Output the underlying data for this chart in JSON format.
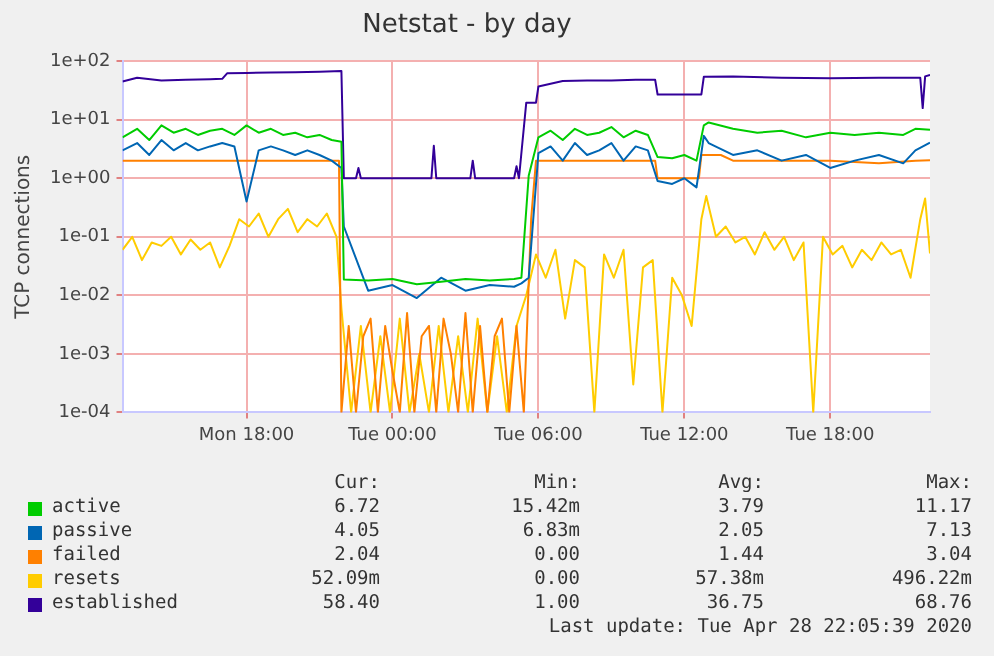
{
  "chart_data": {
    "type": "line",
    "title": "Netstat - by day",
    "ylabel": "TCP connections",
    "log": "y",
    "grid": true,
    "legend": "bottom left",
    "marker": "none",
    "line_style": "solid",
    "xlim": [
      "2020-04-27T12:54",
      "2020-04-28T22:06"
    ],
    "xticks": [
      {
        "value": "2020-04-27T18:00",
        "label": "Mon 18:00"
      },
      {
        "value": "2020-04-28T00:00",
        "label": "Tue 00:00"
      },
      {
        "value": "2020-04-28T06:00",
        "label": "Tue 06:00"
      },
      {
        "value": "2020-04-28T12:00",
        "label": "Tue 12:00"
      },
      {
        "value": "2020-04-28T18:00",
        "label": "Tue 18:00"
      }
    ],
    "ylim": [
      0.0001,
      100
    ],
    "yticks": [
      {
        "value": 0.0001,
        "label": "1e-04"
      },
      {
        "value": 0.001,
        "label": "1e-03"
      },
      {
        "value": 0.01,
        "label": "1e-02"
      },
      {
        "value": 0.1,
        "label": "1e-01"
      },
      {
        "value": 1,
        "label": "1e+00"
      },
      {
        "value": 10,
        "label": "1e+01"
      },
      {
        "value": 100,
        "label": "1e+02"
      }
    ],
    "series": [
      {
        "name": "active",
        "color": "#00cc00",
        "x": [
          "2020-04-27T12:54",
          "2020-04-27T13:30",
          "2020-04-27T14:00",
          "2020-04-27T14:30",
          "2020-04-27T15:00",
          "2020-04-27T15:30",
          "2020-04-27T16:00",
          "2020-04-27T16:30",
          "2020-04-27T17:00",
          "2020-04-27T17:30",
          "2020-04-27T18:00",
          "2020-04-27T18:30",
          "2020-04-27T19:00",
          "2020-04-27T19:30",
          "2020-04-27T20:00",
          "2020-04-27T20:30",
          "2020-04-27T21:00",
          "2020-04-27T21:30",
          "2020-04-27T21:54",
          "2020-04-27T22:00",
          "2020-04-27T23:00",
          "2020-04-28T00:00",
          "2020-04-28T01:00",
          "2020-04-28T02:00",
          "2020-04-28T03:00",
          "2020-04-28T04:00",
          "2020-04-28T05:00",
          "2020-04-28T05:18",
          "2020-04-28T05:36",
          "2020-04-28T06:00",
          "2020-04-28T06:30",
          "2020-04-28T07:00",
          "2020-04-28T07:30",
          "2020-04-28T08:00",
          "2020-04-28T08:30",
          "2020-04-28T09:00",
          "2020-04-28T09:30",
          "2020-04-28T10:00",
          "2020-04-28T10:30",
          "2020-04-28T10:54",
          "2020-04-28T11:30",
          "2020-04-28T12:00",
          "2020-04-28T12:30",
          "2020-04-28T12:48",
          "2020-04-28T13:00",
          "2020-04-28T14:00",
          "2020-04-28T15:00",
          "2020-04-28T16:00",
          "2020-04-28T17:00",
          "2020-04-28T18:00",
          "2020-04-28T19:00",
          "2020-04-28T20:00",
          "2020-04-28T21:00",
          "2020-04-28T21:30",
          "2020-04-28T22:06"
        ],
        "values": [
          5,
          7,
          4.5,
          8,
          6,
          7,
          5.5,
          6.5,
          7,
          5.5,
          8,
          6,
          7,
          5.5,
          6,
          5,
          5.5,
          4.5,
          4.2,
          0.0186,
          0.018,
          0.019,
          0.0155,
          0.017,
          0.019,
          0.018,
          0.019,
          0.02,
          1.1,
          5,
          6.5,
          4.5,
          7,
          5.5,
          6,
          7.5,
          5,
          6.5,
          5.5,
          2.3,
          2.2,
          2.5,
          2.0,
          8,
          9,
          7,
          6,
          6.5,
          5,
          6,
          5.5,
          6,
          5.5,
          7,
          6.72
        ]
      },
      {
        "name": "passive",
        "color": "#0066b3",
        "x": [
          "2020-04-27T12:54",
          "2020-04-27T13:30",
          "2020-04-27T14:00",
          "2020-04-27T14:30",
          "2020-04-27T15:00",
          "2020-04-27T15:30",
          "2020-04-27T16:00",
          "2020-04-27T16:30",
          "2020-04-27T17:00",
          "2020-04-27T17:30",
          "2020-04-27T18:00",
          "2020-04-27T18:30",
          "2020-04-27T19:00",
          "2020-04-27T19:30",
          "2020-04-27T20:00",
          "2020-04-27T20:30",
          "2020-04-27T21:00",
          "2020-04-27T21:30",
          "2020-04-27T21:54",
          "2020-04-27T22:00",
          "2020-04-27T23:00",
          "2020-04-28T00:00",
          "2020-04-28T01:00",
          "2020-04-28T02:00",
          "2020-04-28T03:00",
          "2020-04-28T04:00",
          "2020-04-28T05:00",
          "2020-04-28T05:18",
          "2020-04-28T05:36",
          "2020-04-28T06:00",
          "2020-04-28T06:30",
          "2020-04-28T07:00",
          "2020-04-28T07:30",
          "2020-04-28T08:00",
          "2020-04-28T08:30",
          "2020-04-28T09:00",
          "2020-04-28T09:30",
          "2020-04-28T10:00",
          "2020-04-28T10:30",
          "2020-04-28T10:54",
          "2020-04-28T11:30",
          "2020-04-28T12:00",
          "2020-04-28T12:30",
          "2020-04-28T12:48",
          "2020-04-28T13:00",
          "2020-04-28T14:00",
          "2020-04-28T15:00",
          "2020-04-28T16:00",
          "2020-04-28T17:00",
          "2020-04-28T18:00",
          "2020-04-28T19:00",
          "2020-04-28T20:00",
          "2020-04-28T21:00",
          "2020-04-28T21:30",
          "2020-04-28T22:06"
        ],
        "values": [
          3,
          4,
          2.5,
          4.5,
          3,
          4,
          3,
          3.5,
          4,
          3.5,
          0.4,
          3,
          3.5,
          3,
          2.5,
          3,
          2.5,
          2,
          1.5,
          0.15,
          0.012,
          0.015,
          0.009,
          0.02,
          0.012,
          0.015,
          0.014,
          0.016,
          0.02,
          2.7,
          3.5,
          2,
          4,
          2.5,
          3,
          4,
          2,
          3.5,
          3,
          0.9,
          0.8,
          1,
          0.7,
          5.3,
          4,
          2.5,
          3,
          2,
          2.5,
          1.5,
          2,
          2.5,
          1.8,
          3,
          4.05
        ]
      },
      {
        "name": "failed",
        "color": "#ff8000",
        "x": [
          "2020-04-27T12:54",
          "2020-04-27T16:00",
          "2020-04-27T21:48",
          "2020-04-27T21:54",
          "2020-04-27T22:12",
          "2020-04-27T22:30",
          "2020-04-27T22:48",
          "2020-04-27T23:06",
          "2020-04-27T23:24",
          "2020-04-27T23:42",
          "2020-04-28T00:00",
          "2020-04-28T00:18",
          "2020-04-28T00:36",
          "2020-04-28T00:54",
          "2020-04-28T01:12",
          "2020-04-28T01:30",
          "2020-04-28T01:48",
          "2020-04-28T02:06",
          "2020-04-28T02:24",
          "2020-04-28T02:42",
          "2020-04-28T03:00",
          "2020-04-28T03:18",
          "2020-04-28T03:36",
          "2020-04-28T03:54",
          "2020-04-28T04:12",
          "2020-04-28T04:30",
          "2020-04-28T04:48",
          "2020-04-28T05:06",
          "2020-04-28T05:24",
          "2020-04-28T05:42",
          "2020-04-28T05:54",
          "2020-04-28T07:00",
          "2020-04-28T09:00",
          "2020-04-28T10:48",
          "2020-04-28T10:54",
          "2020-04-28T12:36",
          "2020-04-28T12:42",
          "2020-04-28T13:30",
          "2020-04-28T14:00",
          "2020-04-28T16:00",
          "2020-04-28T18:00",
          "2020-04-28T20:00",
          "2020-04-28T21:30",
          "2020-04-28T22:06"
        ],
        "values": [
          2,
          2,
          2,
          0.0001,
          0.003,
          0.0001,
          0.002,
          0.004,
          0.0001,
          0.003,
          0.0005,
          0.0001,
          0.005,
          0.0001,
          0.002,
          0.003,
          0.0001,
          0.004,
          0.001,
          0.0001,
          0.005,
          0.0001,
          0.003,
          0.0001,
          0.002,
          0.004,
          0.0001,
          0.003,
          0.0001,
          0.2,
          2,
          2,
          2,
          2,
          1,
          1,
          2.5,
          2.5,
          2,
          2,
          2,
          1.8,
          2,
          2.04
        ]
      },
      {
        "name": "resets",
        "color": "#ffcc00",
        "x": [
          "2020-04-27T12:54",
          "2020-04-27T13:18",
          "2020-04-27T13:42",
          "2020-04-27T14:06",
          "2020-04-27T14:30",
          "2020-04-27T14:54",
          "2020-04-27T15:18",
          "2020-04-27T15:42",
          "2020-04-27T16:06",
          "2020-04-27T16:30",
          "2020-04-27T16:54",
          "2020-04-27T17:18",
          "2020-04-27T17:42",
          "2020-04-27T18:06",
          "2020-04-27T18:30",
          "2020-04-27T18:54",
          "2020-04-27T19:18",
          "2020-04-27T19:42",
          "2020-04-27T20:06",
          "2020-04-27T20:30",
          "2020-04-27T20:54",
          "2020-04-27T21:18",
          "2020-04-27T21:42",
          "2020-04-27T21:54",
          "2020-04-27T22:18",
          "2020-04-27T22:42",
          "2020-04-27T23:06",
          "2020-04-27T23:30",
          "2020-04-27T23:54",
          "2020-04-28T00:18",
          "2020-04-28T00:42",
          "2020-04-28T01:06",
          "2020-04-28T01:30",
          "2020-04-28T01:54",
          "2020-04-28T02:18",
          "2020-04-28T02:42",
          "2020-04-28T03:06",
          "2020-04-28T03:30",
          "2020-04-28T03:54",
          "2020-04-28T04:18",
          "2020-04-28T04:42",
          "2020-04-28T05:06",
          "2020-04-28T05:30",
          "2020-04-28T05:54",
          "2020-04-28T06:18",
          "2020-04-28T06:42",
          "2020-04-28T07:06",
          "2020-04-28T07:30",
          "2020-04-28T07:54",
          "2020-04-28T08:18",
          "2020-04-28T08:42",
          "2020-04-28T09:06",
          "2020-04-28T09:30",
          "2020-04-28T09:54",
          "2020-04-28T10:18",
          "2020-04-28T10:42",
          "2020-04-28T11:06",
          "2020-04-28T11:30",
          "2020-04-28T11:54",
          "2020-04-28T12:18",
          "2020-04-28T12:42",
          "2020-04-28T12:54",
          "2020-04-28T13:18",
          "2020-04-28T13:42",
          "2020-04-28T14:06",
          "2020-04-28T14:30",
          "2020-04-28T14:54",
          "2020-04-28T15:18",
          "2020-04-28T15:42",
          "2020-04-28T16:06",
          "2020-04-28T16:30",
          "2020-04-28T16:54",
          "2020-04-28T17:18",
          "2020-04-28T17:42",
          "2020-04-28T18:06",
          "2020-04-28T18:30",
          "2020-04-28T18:54",
          "2020-04-28T19:18",
          "2020-04-28T19:42",
          "2020-04-28T20:06",
          "2020-04-28T20:30",
          "2020-04-28T20:54",
          "2020-04-28T21:18",
          "2020-04-28T21:42",
          "2020-04-28T21:54",
          "2020-04-28T22:06"
        ],
        "values": [
          0.06,
          0.1,
          0.04,
          0.08,
          0.07,
          0.1,
          0.05,
          0.09,
          0.06,
          0.08,
          0.03,
          0.07,
          0.2,
          0.15,
          0.25,
          0.1,
          0.2,
          0.3,
          0.12,
          0.2,
          0.15,
          0.25,
          0.1,
          0.006,
          0.0001,
          0.003,
          0.0001,
          0.002,
          0.0001,
          0.004,
          0.0001,
          0.001,
          0.0001,
          0.003,
          0.0001,
          0.002,
          0.0001,
          0.004,
          0.0001,
          0.002,
          0.0001,
          0.003,
          0.01,
          0.05,
          0.02,
          0.06,
          0.004,
          0.04,
          0.03,
          0.0001,
          0.05,
          0.02,
          0.06,
          0.0003,
          0.03,
          0.04,
          0.0001,
          0.02,
          0.01,
          0.003,
          0.2,
          0.496,
          0.1,
          0.15,
          0.08,
          0.1,
          0.05,
          0.12,
          0.06,
          0.1,
          0.04,
          0.08,
          0.0001,
          0.1,
          0.05,
          0.07,
          0.03,
          0.06,
          0.04,
          0.08,
          0.05,
          0.06,
          0.02,
          0.2,
          0.45,
          0.052
        ]
      },
      {
        "name": "established",
        "color": "#330099",
        "x": [
          "2020-04-27T12:54",
          "2020-04-27T13:30",
          "2020-04-27T14:30",
          "2020-04-27T15:30",
          "2020-04-27T16:30",
          "2020-04-27T17:00",
          "2020-04-27T17:12",
          "2020-04-27T18:00",
          "2020-04-27T19:00",
          "2020-04-27T20:00",
          "2020-04-27T21:00",
          "2020-04-27T21:54",
          "2020-04-27T22:00",
          "2020-04-27T22:30",
          "2020-04-27T22:36",
          "2020-04-27T22:42",
          "2020-04-27T23:00",
          "2020-04-28T01:36",
          "2020-04-28T01:42",
          "2020-04-28T01:48",
          "2020-04-28T03:12",
          "2020-04-28T03:18",
          "2020-04-28T03:24",
          "2020-04-28T05:00",
          "2020-04-28T05:06",
          "2020-04-28T05:12",
          "2020-04-28T05:30",
          "2020-04-28T05:54",
          "2020-04-28T06:00",
          "2020-04-28T07:00",
          "2020-04-28T08:00",
          "2020-04-28T09:00",
          "2020-04-28T10:00",
          "2020-04-28T10:48",
          "2020-04-28T10:54",
          "2020-04-28T12:42",
          "2020-04-28T12:48",
          "2020-04-28T14:00",
          "2020-04-28T16:00",
          "2020-04-28T18:00",
          "2020-04-28T20:00",
          "2020-04-28T21:42",
          "2020-04-28T21:48",
          "2020-04-28T21:54",
          "2020-04-28T22:06"
        ],
        "values": [
          45,
          52,
          47,
          48,
          49,
          50,
          62,
          63,
          64,
          65,
          66,
          68,
          1,
          1,
          1.5,
          1,
          1,
          1,
          3.6,
          1,
          1,
          2,
          1,
          1,
          1.6,
          1,
          19.6,
          19.6,
          37,
          46,
          47,
          47,
          48,
          48,
          27,
          27,
          54,
          55,
          52,
          51,
          52,
          52,
          15.8,
          55,
          58.4
        ]
      }
    ],
    "annotations": [
      "Cur:",
      "Min:",
      "Avg:",
      "Max:",
      "6.72",
      "15.42m",
      "3.79",
      "11.17",
      "4.05",
      "6.83m",
      "2.05",
      "7.13",
      "2.04",
      "0.00",
      "1.44",
      "3.04",
      "52.09m",
      "0.00",
      "57.38m",
      "496.22m",
      "58.40",
      "1.00",
      "36.75",
      "68.76",
      "Last update: Tue Apr 28 22:05:39 2020"
    ]
  }
}
